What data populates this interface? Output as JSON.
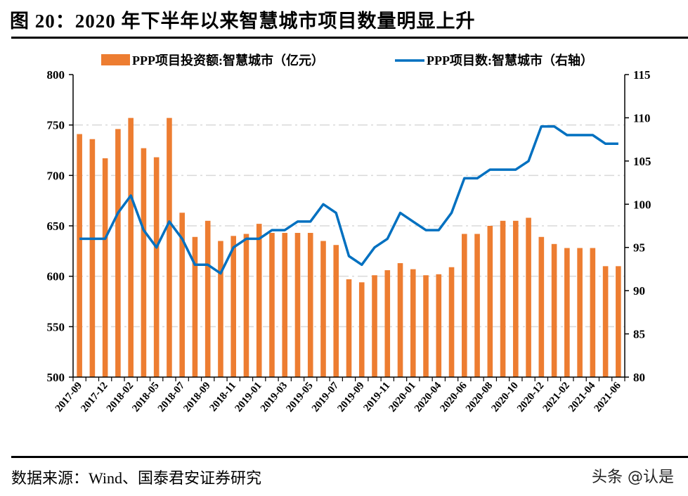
{
  "title": "图 20：2020 年下半年以来智慧城市项目数量明显上升",
  "source": "数据来源：Wind、国泰君安证券研究",
  "watermark": "头条 @认是",
  "chart_data": {
    "type": "bar+line",
    "title": "图 20：2020 年下半年以来智慧城市项目数量明显上升",
    "legend_placement": "top",
    "grid": true,
    "x_tick_labels": [
      "2017-09",
      "",
      "2017-12",
      "",
      "2018-02",
      "",
      "2018-05",
      "",
      "2018-07",
      "",
      "2018-09",
      "",
      "2018-11",
      "",
      "2019-01",
      "",
      "2019-03",
      "",
      "2019-05",
      "",
      "2019-07",
      "",
      "2019-09",
      "",
      "2019-11",
      "",
      "2020-01",
      "",
      "2020-04",
      "",
      "2020-06",
      "",
      "2020-08",
      "",
      "2020-10",
      "",
      "2020-12",
      "",
      "2021-02",
      "",
      "2021-04",
      "",
      "2021-06"
    ],
    "left_axis": {
      "ylim": [
        500,
        800
      ],
      "ticks": [
        500,
        550,
        600,
        650,
        700,
        750,
        800
      ]
    },
    "right_axis": {
      "ylim": [
        80,
        115
      ],
      "ticks": [
        80,
        85,
        90,
        95,
        100,
        105,
        110,
        115
      ]
    },
    "series": [
      {
        "name": "PPP项目投资额:智慧城市（亿元）",
        "type": "bar",
        "axis": "left",
        "color": "#ED7D31",
        "values": [
          741,
          736,
          717,
          746,
          757,
          727,
          718,
          757,
          663,
          639,
          655,
          635,
          640,
          642,
          652,
          643,
          643,
          643,
          643,
          635,
          631,
          597,
          594,
          601,
          606,
          613,
          607,
          601,
          602,
          609,
          642,
          642,
          650,
          655,
          655,
          658,
          639,
          632,
          628,
          628,
          628,
          610,
          610
        ]
      },
      {
        "name": "PPP项目数:智慧城市（右轴）",
        "type": "line",
        "axis": "right",
        "color": "#0070C0",
        "values": [
          96,
          96,
          96,
          99,
          101,
          97,
          95,
          98,
          96,
          93,
          93,
          92,
          95,
          96,
          96,
          97,
          97,
          98,
          98,
          100,
          99,
          94,
          93,
          95,
          96,
          99,
          98,
          97,
          97,
          99,
          103,
          103,
          104,
          104,
          104,
          105,
          109,
          109,
          108,
          108,
          108,
          107,
          107
        ]
      }
    ]
  }
}
